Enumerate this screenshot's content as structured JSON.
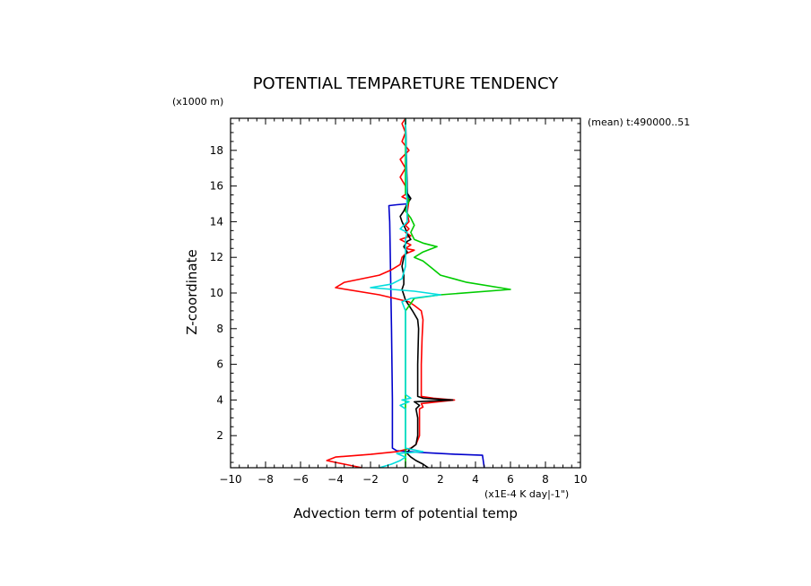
{
  "chart_data": {
    "type": "line",
    "title": "POTENTIAL TEMPARETURE TENDENCY",
    "y_unit": "(x1000 m)",
    "x_unit": "(x1E-4 K day|-1\")",
    "xlabel": "Advection term of potential temp",
    "ylabel": "Z-coordinate",
    "annotation": "(mean) t:490000..51",
    "xlim": [
      -10,
      10
    ],
    "ylim": [
      0.2,
      19.8
    ],
    "x_ticks": [
      -10,
      -8,
      -6,
      -4,
      -2,
      0,
      2,
      4,
      6,
      8,
      10
    ],
    "x_tick_labels": [
      "−10",
      "−8",
      "−6",
      "−4",
      "−2",
      "0",
      "2",
      "4",
      "6",
      "8",
      "10"
    ],
    "y_ticks": [
      2,
      4,
      6,
      8,
      10,
      12,
      14,
      16,
      18
    ],
    "y_tick_labels": [
      "2",
      "4",
      "6",
      "8",
      "10",
      "12",
      "14",
      "16",
      "18"
    ],
    "grid": false,
    "series": [
      {
        "color": "#0000cc",
        "points": [
          [
            4.5,
            0.2
          ],
          [
            4.4,
            0.9
          ],
          [
            3.0,
            0.95
          ],
          [
            1.0,
            1.05
          ],
          [
            -0.5,
            1.15
          ],
          [
            -0.75,
            1.3
          ],
          [
            -0.75,
            4.0
          ],
          [
            -0.8,
            8.0
          ],
          [
            -0.85,
            11.0
          ],
          [
            -0.9,
            14.0
          ],
          [
            -0.95,
            14.9
          ],
          [
            -0.5,
            14.95
          ],
          [
            0.1,
            15.0
          ],
          [
            0.2,
            15.3
          ],
          [
            0.1,
            15.6
          ],
          [
            0.05,
            17.0
          ],
          [
            0.0,
            19.8
          ]
        ]
      },
      {
        "color": "#ff0000",
        "points": [
          [
            -2.5,
            0.2
          ],
          [
            -3.5,
            0.4
          ],
          [
            -4.5,
            0.6
          ],
          [
            -4.0,
            0.8
          ],
          [
            -2.0,
            0.95
          ],
          [
            -0.5,
            1.1
          ],
          [
            0.3,
            1.3
          ],
          [
            0.6,
            1.5
          ],
          [
            0.8,
            2.0
          ],
          [
            0.8,
            3.0
          ],
          [
            0.8,
            3.5
          ],
          [
            1.0,
            3.6
          ],
          [
            0.9,
            3.8
          ],
          [
            2.8,
            4.0
          ],
          [
            1.6,
            4.1
          ],
          [
            0.9,
            4.2
          ],
          [
            0.9,
            6.0
          ],
          [
            0.95,
            7.5
          ],
          [
            1.0,
            8.5
          ],
          [
            0.9,
            9.0
          ],
          [
            0.5,
            9.3
          ],
          [
            0.2,
            9.5
          ],
          [
            -0.2,
            9.6
          ],
          [
            -1.5,
            9.9
          ],
          [
            -4.0,
            10.3
          ],
          [
            -3.5,
            10.6
          ],
          [
            -1.5,
            11.0
          ],
          [
            -0.8,
            11.3
          ],
          [
            -0.3,
            11.6
          ],
          [
            -0.2,
            12.0
          ],
          [
            0.0,
            12.2
          ],
          [
            0.5,
            12.4
          ],
          [
            0.0,
            12.5
          ],
          [
            0.3,
            12.7
          ],
          [
            -0.3,
            13.0
          ],
          [
            0.3,
            13.2
          ],
          [
            0.0,
            13.4
          ],
          [
            0.2,
            13.6
          ],
          [
            0.0,
            13.8
          ],
          [
            0.2,
            14.0
          ],
          [
            0.1,
            14.5
          ],
          [
            0.2,
            15.2
          ],
          [
            -0.2,
            15.4
          ],
          [
            0.1,
            15.6
          ],
          [
            0.0,
            16.0
          ],
          [
            -0.3,
            16.5
          ],
          [
            0.0,
            17.0
          ],
          [
            -0.3,
            17.5
          ],
          [
            0.2,
            18.0
          ],
          [
            -0.2,
            18.5
          ],
          [
            0.0,
            19.0
          ],
          [
            -0.2,
            19.5
          ],
          [
            0.0,
            19.8
          ]
        ]
      },
      {
        "color": "#000000",
        "points": [
          [
            1.3,
            0.2
          ],
          [
            1.0,
            0.4
          ],
          [
            0.6,
            0.6
          ],
          [
            0.3,
            0.8
          ],
          [
            0.1,
            1.0
          ],
          [
            0.2,
            1.2
          ],
          [
            0.6,
            1.5
          ],
          [
            0.7,
            2.0
          ],
          [
            0.7,
            3.0
          ],
          [
            0.6,
            3.5
          ],
          [
            0.8,
            3.7
          ],
          [
            0.5,
            3.9
          ],
          [
            2.7,
            4.0
          ],
          [
            1.0,
            4.1
          ],
          [
            0.7,
            4.2
          ],
          [
            0.7,
            6.0
          ],
          [
            0.75,
            8.0
          ],
          [
            0.7,
            8.5
          ],
          [
            0.4,
            9.0
          ],
          [
            0.2,
            9.3
          ],
          [
            0.0,
            9.6
          ],
          [
            -0.1,
            9.9
          ],
          [
            -0.2,
            10.2
          ],
          [
            -0.1,
            10.5
          ],
          [
            -0.1,
            11.0
          ],
          [
            -0.2,
            11.5
          ],
          [
            -0.1,
            12.0
          ],
          [
            0.1,
            12.3
          ],
          [
            -0.1,
            12.6
          ],
          [
            0.1,
            12.9
          ],
          [
            0.3,
            13.0
          ],
          [
            0.1,
            13.3
          ],
          [
            0.0,
            13.6
          ],
          [
            -0.2,
            14.0
          ],
          [
            -0.3,
            14.3
          ],
          [
            -0.1,
            14.6
          ],
          [
            0.1,
            15.0
          ],
          [
            0.3,
            15.3
          ],
          [
            0.1,
            15.6
          ],
          [
            0.0,
            19.8
          ]
        ]
      },
      {
        "color": "#00cc00",
        "points": [
          [
            0.0,
            0.2
          ],
          [
            0.0,
            1.5
          ],
          [
            0.0,
            4.0
          ],
          [
            0.0,
            9.0
          ],
          [
            0.5,
            9.7
          ],
          [
            2.0,
            9.9
          ],
          [
            6.0,
            10.2
          ],
          [
            3.5,
            10.6
          ],
          [
            2.0,
            11.0
          ],
          [
            1.5,
            11.4
          ],
          [
            1.0,
            11.8
          ],
          [
            0.5,
            12.0
          ],
          [
            1.0,
            12.3
          ],
          [
            1.8,
            12.6
          ],
          [
            1.0,
            12.8
          ],
          [
            0.5,
            13.0
          ],
          [
            0.3,
            13.4
          ],
          [
            0.5,
            13.8
          ],
          [
            0.3,
            14.2
          ],
          [
            0.0,
            14.6
          ],
          [
            0.2,
            15.2
          ],
          [
            0.0,
            15.6
          ],
          [
            0.0,
            19.8
          ]
        ]
      },
      {
        "color": "#00dddd",
        "points": [
          [
            -1.5,
            0.2
          ],
          [
            -0.8,
            0.4
          ],
          [
            -0.3,
            0.6
          ],
          [
            0.0,
            0.8
          ],
          [
            -0.5,
            1.0
          ],
          [
            1.0,
            1.1
          ],
          [
            0.0,
            1.3
          ],
          [
            0.0,
            3.5
          ],
          [
            -0.3,
            3.7
          ],
          [
            0.2,
            3.9
          ],
          [
            -0.2,
            4.0
          ],
          [
            0.3,
            4.1
          ],
          [
            0.0,
            4.3
          ],
          [
            0.0,
            9.0
          ],
          [
            -0.2,
            9.5
          ],
          [
            0.3,
            9.7
          ],
          [
            2.0,
            9.9
          ],
          [
            0.5,
            10.1
          ],
          [
            -2.0,
            10.3
          ],
          [
            -0.8,
            10.5
          ],
          [
            -0.2,
            10.8
          ],
          [
            0.0,
            11.5
          ],
          [
            0.0,
            13.0
          ],
          [
            0.1,
            13.4
          ],
          [
            -0.3,
            13.6
          ],
          [
            0.1,
            14.0
          ],
          [
            0.0,
            19.8
          ]
        ]
      }
    ]
  }
}
